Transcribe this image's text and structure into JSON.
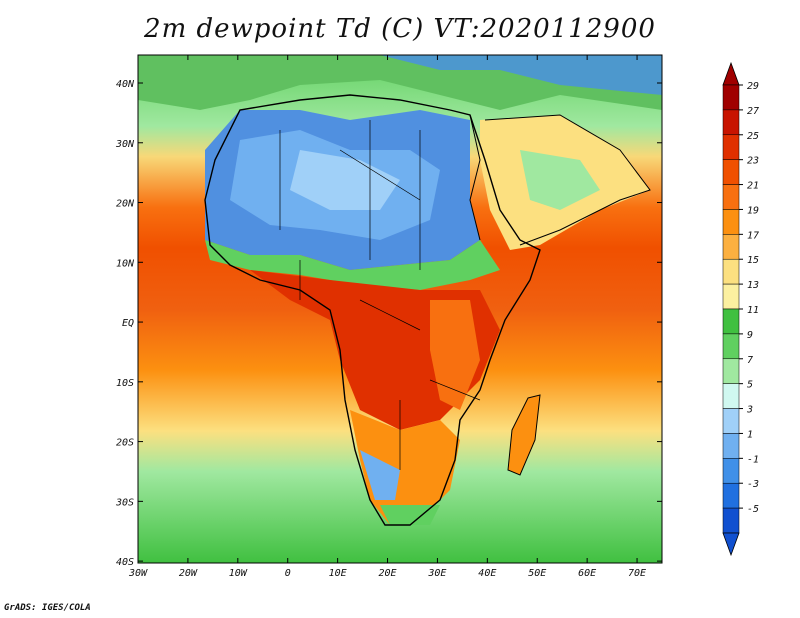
{
  "title": "2m dewpoint Td (C) VT:2020112900",
  "credit": "GrADS: IGES/COLA",
  "map": {
    "lon_range": [
      -30,
      75
    ],
    "lat_range": [
      -40,
      45
    ],
    "x_ticks": [
      "30W",
      "20W",
      "10W",
      "0",
      "10E",
      "20E",
      "30E",
      "40E",
      "50E",
      "60E",
      "70E"
    ],
    "y_ticks": [
      "40N",
      "30N",
      "20N",
      "10N",
      "EQ",
      "10S",
      "20S",
      "30S",
      "40S"
    ]
  },
  "colorbar": {
    "labels": [
      "29",
      "27",
      "25",
      "23",
      "21",
      "19",
      "17",
      "15",
      "13",
      "11",
      "9",
      "7",
      "5",
      "3",
      "1",
      "-1",
      "-3",
      "-5"
    ],
    "colors": [
      "#a00000",
      "#c81400",
      "#e03000",
      "#f05000",
      "#f87010",
      "#fc9010",
      "#fcb040",
      "#fce080",
      "#fcf0a0",
      "#40c040",
      "#60d060",
      "#a0e8a0",
      "#d0f8f0",
      "#a0d0f8",
      "#70b0f0",
      "#4090e8",
      "#2070e0",
      "#1050d0"
    ],
    "top_arrow_color": "#a00000",
    "bottom_arrow_color": "#1050d0"
  }
}
